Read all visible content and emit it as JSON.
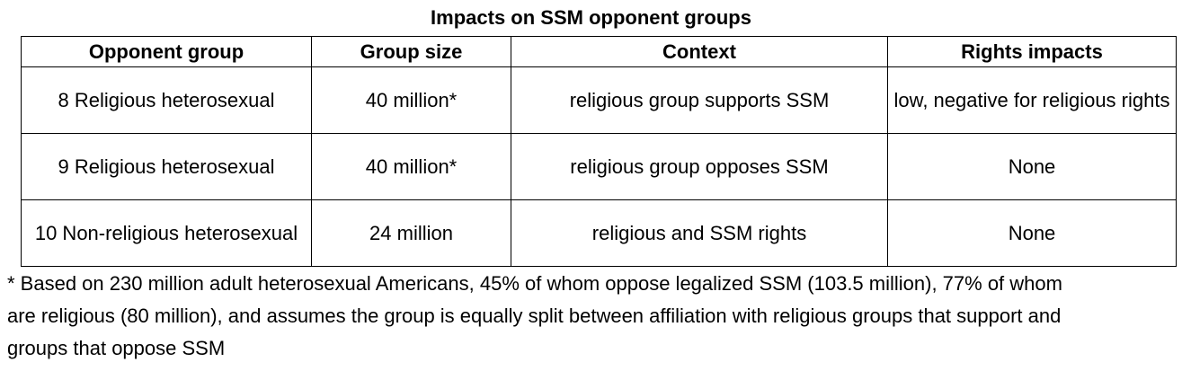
{
  "title": "Impacts on SSM opponent groups",
  "table": {
    "headers": [
      "Opponent group",
      "Group size",
      "Context",
      "Rights impacts"
    ],
    "rows": [
      {
        "opponent_group": "8  Religious heterosexual",
        "group_size": "40 million*",
        "context": "religious group supports SSM",
        "rights_impacts": "low, negative for religious rights"
      },
      {
        "opponent_group": "9  Religious heterosexual",
        "group_size": "40 million*",
        "context": "religious group opposes SSM",
        "rights_impacts": "None"
      },
      {
        "opponent_group": "10  Non-religious heterosexual",
        "group_size": "24 million",
        "context": "religious and SSM rights",
        "rights_impacts": "None"
      }
    ]
  },
  "footnote": "* Based on 230 million adult heterosexual Americans, 45% of whom oppose legalized SSM (103.5 million), 77% of whom are religious (80 million), and assumes the group is equally split between affiliation with religious groups that support and groups that oppose SSM"
}
